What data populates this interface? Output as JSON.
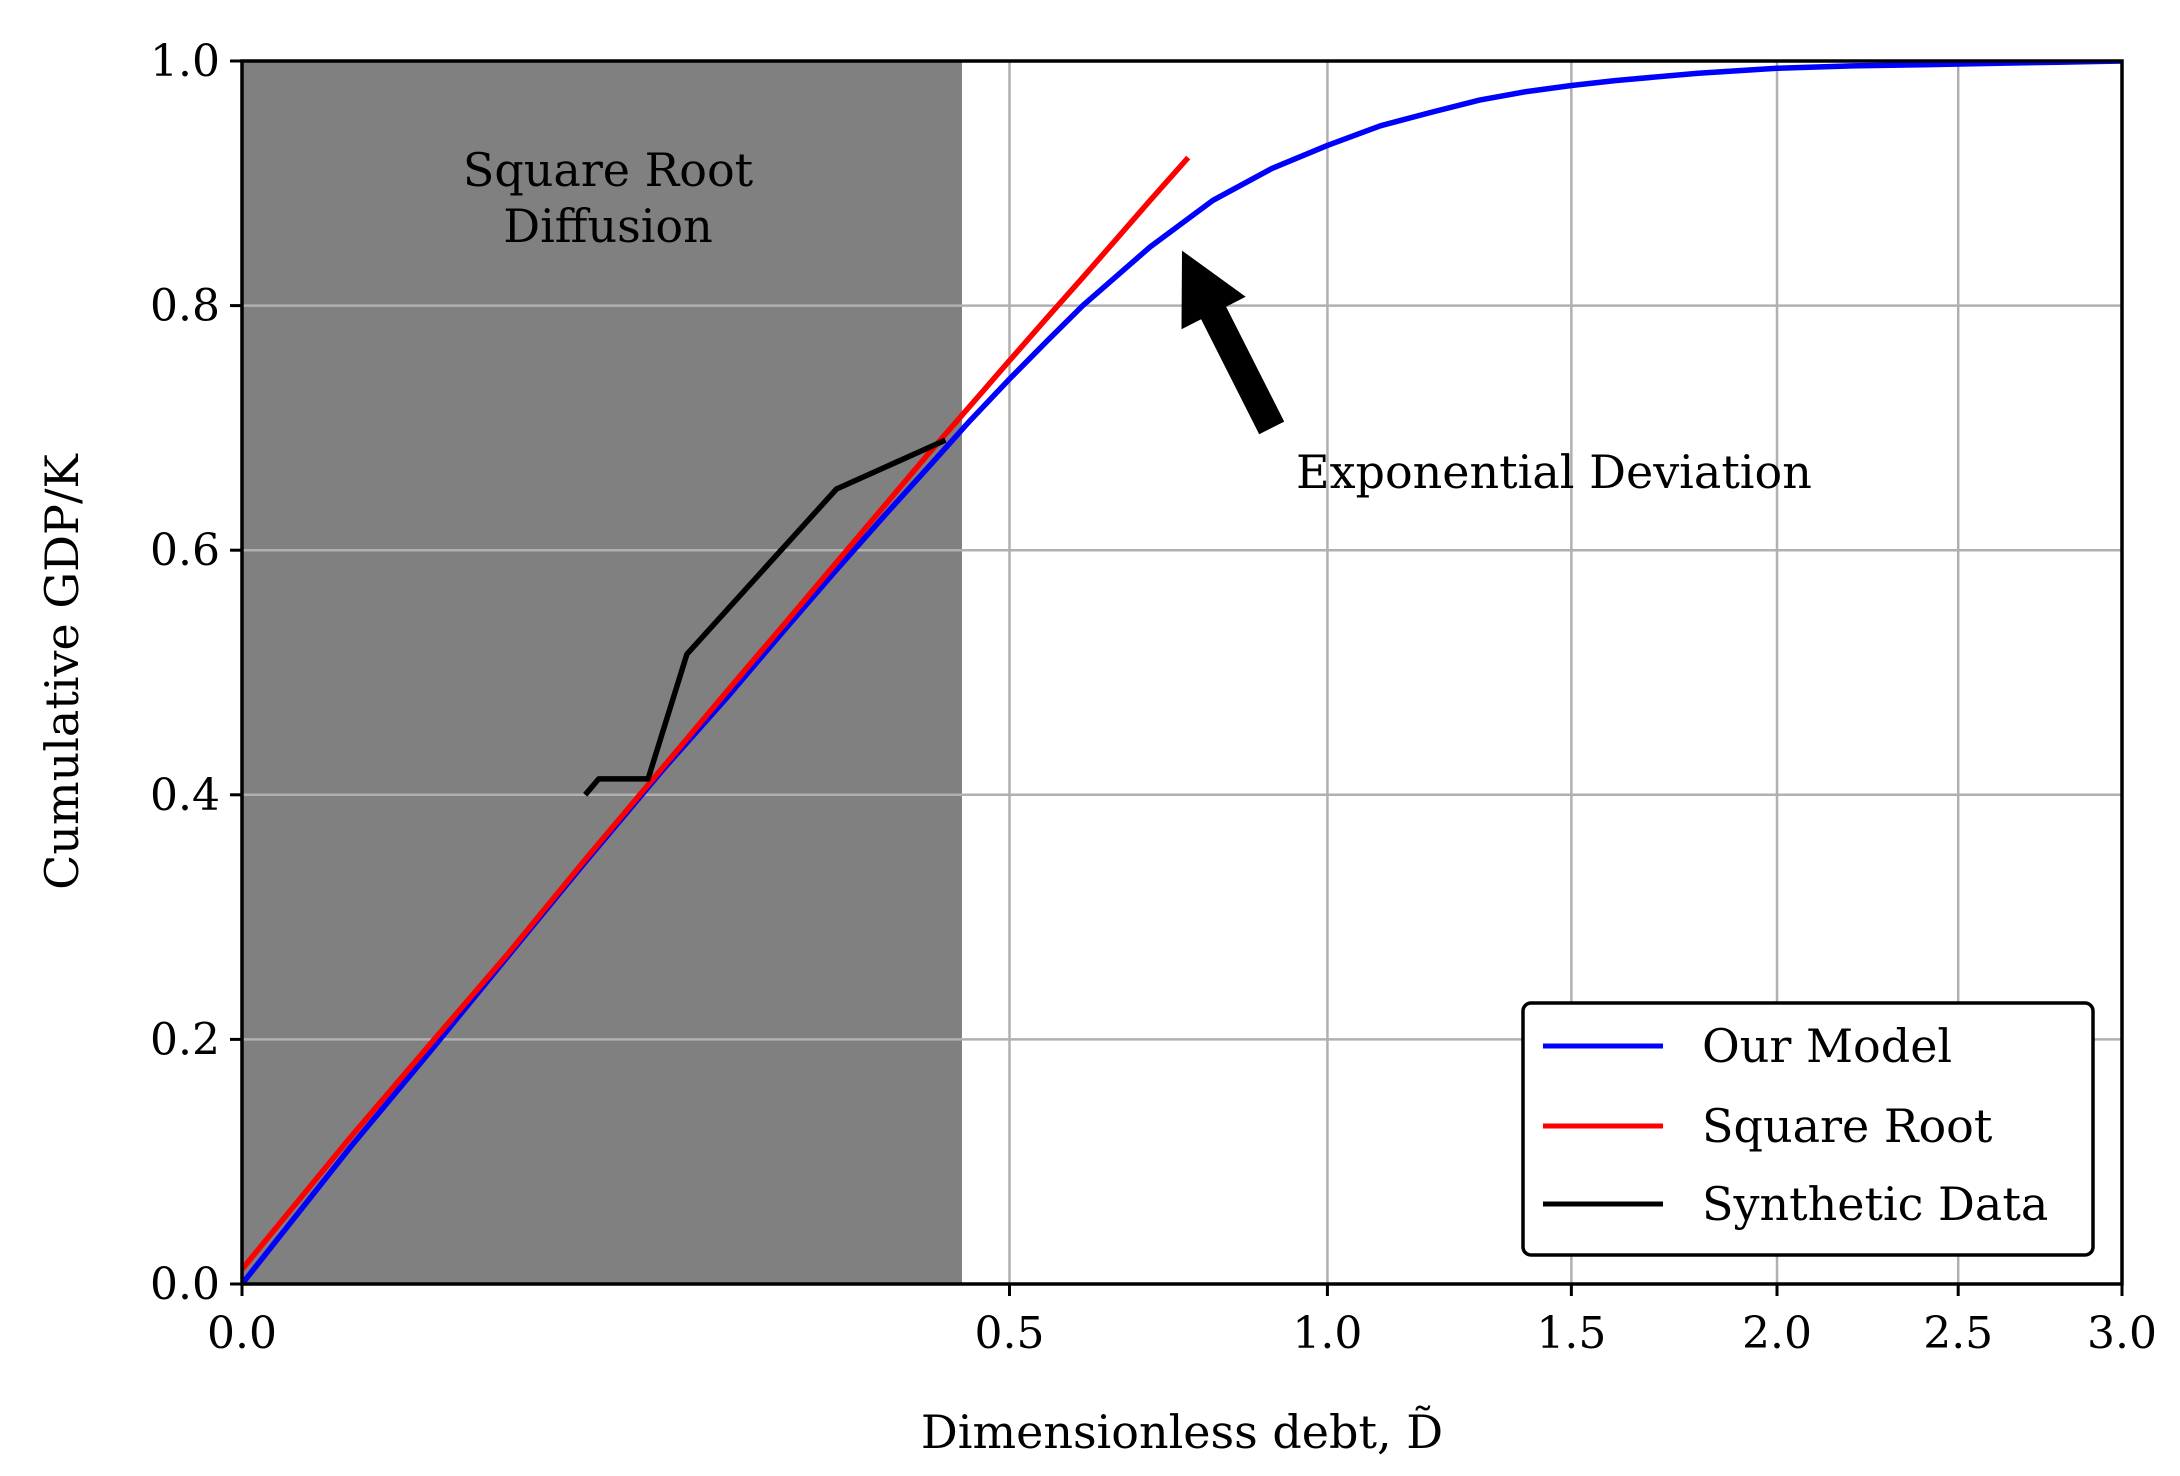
{
  "chart_data": {
    "type": "line",
    "title": "",
    "xlabel": "Dimensionless debt, D̃",
    "ylabel": "Cumulative GDP/K",
    "ylim": [
      0,
      1.0
    ],
    "x_scale": "square-root",
    "xlim": [
      0,
      3.0
    ],
    "x_ticks": [
      0.0,
      0.5,
      1.0,
      1.5,
      2.0,
      2.5,
      3.0
    ],
    "x_tick_labels": [
      "0.0",
      "0.5",
      "1.0",
      "1.5",
      "2.0",
      "2.5",
      "3.0"
    ],
    "y_ticks": [
      0.0,
      0.2,
      0.4,
      0.6,
      0.8,
      1.0
    ],
    "y_tick_labels": [
      "0.0",
      "0.2",
      "0.4",
      "0.6",
      "0.8",
      "1.0"
    ],
    "grid": true,
    "legend_position": "bottom-right",
    "shaded_region": {
      "x_start": 0.0,
      "x_end": 0.44,
      "color": "#808080",
      "label_line1": "Square Root",
      "label_line2": "Diffusion"
    },
    "annotations": [
      {
        "text": "Exponential Deviation",
        "arrow_to": [
          0.75,
          0.845
        ],
        "arrow_from": [
          0.9,
          0.7
        ]
      }
    ],
    "colors": {
      "our_model": "#0000ff",
      "square_root": "#ff0000",
      "synthetic": "#000000",
      "grid": "#b0b0b0"
    },
    "series": [
      {
        "name": "Our Model",
        "color": "#0000ff",
        "x": [
          0.0,
          0.01,
          0.03,
          0.06,
          0.1,
          0.15,
          0.2,
          0.25,
          0.3,
          0.35,
          0.4,
          0.45,
          0.5,
          0.55,
          0.6,
          0.7,
          0.8,
          0.9,
          1.0,
          1.1,
          1.2,
          1.3,
          1.4,
          1.5,
          1.6,
          1.8,
          2.0,
          2.2,
          2.4,
          2.6,
          2.8,
          3.0
        ],
        "values": [
          0.0,
          0.112,
          0.19,
          0.268,
          0.345,
          0.42,
          0.48,
          0.535,
          0.584,
          0.628,
          0.668,
          0.706,
          0.74,
          0.771,
          0.8,
          0.848,
          0.886,
          0.912,
          0.931,
          0.947,
          0.958,
          0.968,
          0.975,
          0.98,
          0.984,
          0.99,
          0.994,
          0.996,
          0.997,
          0.998,
          0.999,
          1.0
        ]
      },
      {
        "name": "Square Root",
        "color": "#ff0000",
        "x": [
          0.0,
          0.01,
          0.03,
          0.06,
          0.1,
          0.15,
          0.2,
          0.25,
          0.3,
          0.35,
          0.4,
          0.45,
          0.5,
          0.55,
          0.6,
          0.65,
          0.7,
          0.76
        ],
        "values": [
          0.012,
          0.12,
          0.196,
          0.27,
          0.347,
          0.422,
          0.485,
          0.54,
          0.59,
          0.636,
          0.679,
          0.718,
          0.755,
          0.79,
          0.823,
          0.855,
          0.886,
          0.921
        ]
      },
      {
        "name": "Synthetic Data",
        "color": "#000000",
        "x": [
          0.1,
          0.108,
          0.14,
          0.168,
          0.3,
          0.42
        ],
        "values": [
          0.4,
          0.413,
          0.413,
          0.515,
          0.65,
          0.69
        ]
      }
    ]
  }
}
